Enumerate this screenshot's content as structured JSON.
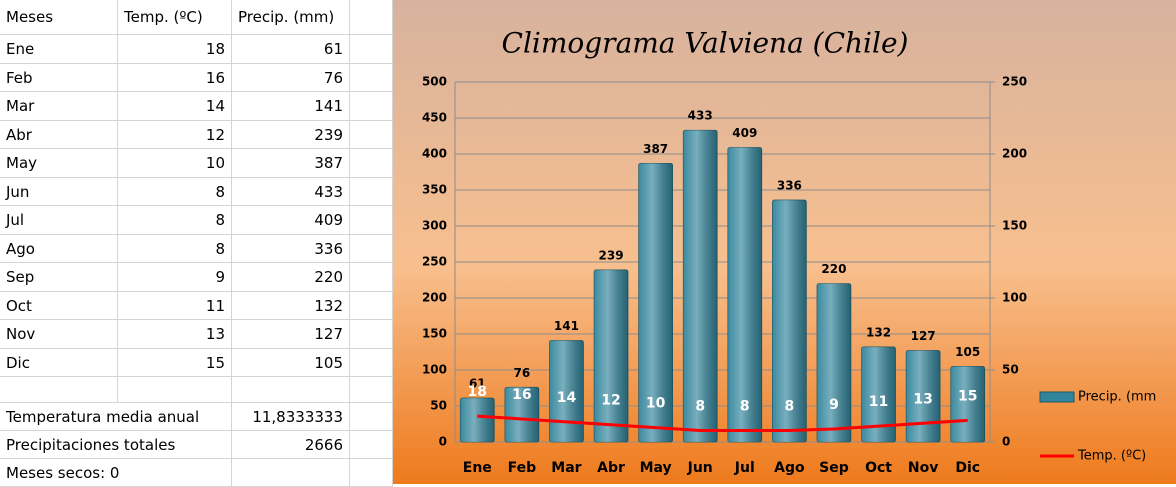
{
  "table": {
    "header": [
      "Meses",
      "Temp. (ºC)",
      "Precip. (mm)"
    ],
    "rows": [
      [
        "Ene",
        18,
        61
      ],
      [
        "Feb",
        16,
        76
      ],
      [
        "Mar",
        14,
        141
      ],
      [
        "Abr",
        12,
        239
      ],
      [
        "May",
        10,
        387
      ],
      [
        "Jun",
        8,
        433
      ],
      [
        "Jul",
        8,
        409
      ],
      [
        "Ago",
        8,
        336
      ],
      [
        "Sep",
        9,
        220
      ],
      [
        "Oct",
        11,
        132
      ],
      [
        "Nov",
        13,
        127
      ],
      [
        "Dic",
        15,
        105
      ]
    ],
    "summary": [
      [
        "Temperatura media anual",
        "11,8333333"
      ],
      [
        "Precipitaciones totales",
        2666
      ],
      [
        "Meses secos: 0"
      ]
    ]
  },
  "chart_data": {
    "type": "bar",
    "title": "Climograma Valviena (Chile)",
    "categories": [
      "Ene",
      "Feb",
      "Mar",
      "Abr",
      "May",
      "Jun",
      "Jul",
      "Ago",
      "Sep",
      "Oct",
      "Nov",
      "Dic"
    ],
    "series": [
      {
        "name": "Precip. (mm",
        "type": "bar",
        "color": "#31849b",
        "values": [
          61,
          76,
          141,
          239,
          387,
          433,
          409,
          336,
          220,
          132,
          127,
          105
        ]
      },
      {
        "name": "Temp. (ºC)",
        "type": "line",
        "axis": "y2",
        "color": "#ff0000",
        "values": [
          18,
          16,
          14,
          12,
          10,
          8,
          8,
          8,
          9,
          11,
          13,
          15
        ]
      }
    ],
    "ylim": [
      0,
      500
    ],
    "yticks": [
      0,
      50,
      100,
      150,
      200,
      250,
      300,
      350,
      400,
      450,
      500
    ],
    "y2lim": [
      0,
      250
    ],
    "y2ticks": [
      0,
      50,
      100,
      150,
      200,
      250
    ],
    "grid": true,
    "legend": "right"
  }
}
